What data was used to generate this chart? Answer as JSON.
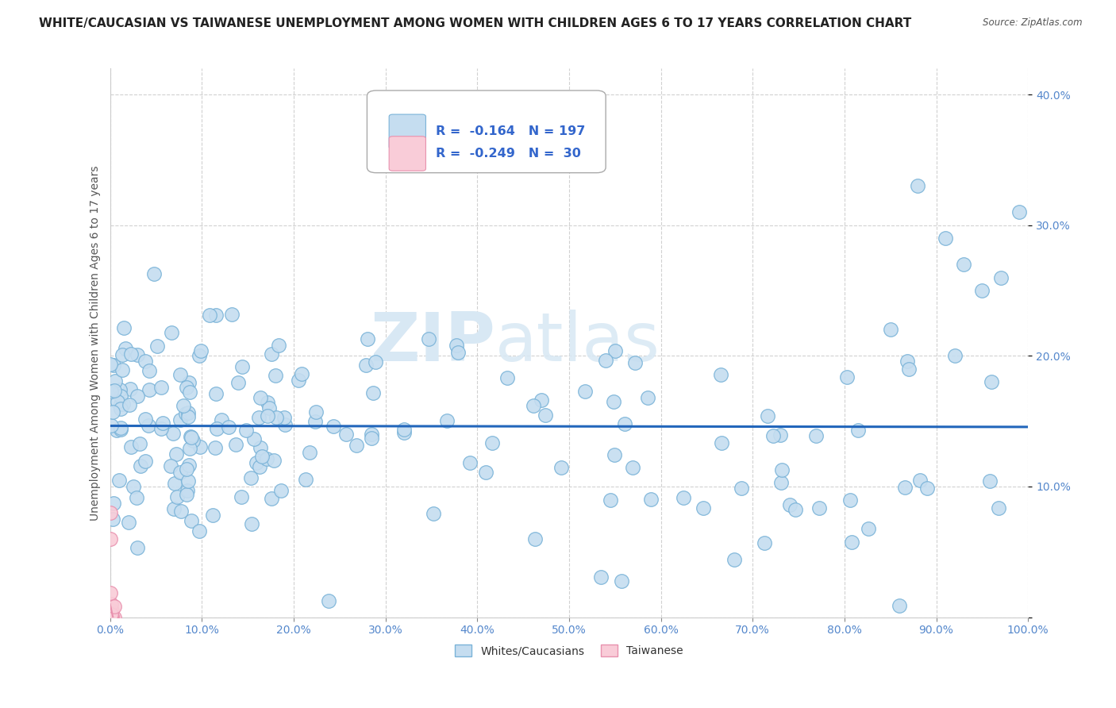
{
  "title": "WHITE/CAUCASIAN VS TAIWANESE UNEMPLOYMENT AMONG WOMEN WITH CHILDREN AGES 6 TO 17 YEARS CORRELATION CHART",
  "source": "Source: ZipAtlas.com",
  "xlabel": "",
  "ylabel": "Unemployment Among Women with Children Ages 6 to 17 years",
  "xlim": [
    0,
    1.0
  ],
  "ylim": [
    0,
    0.42
  ],
  "xticks": [
    0.0,
    0.1,
    0.2,
    0.3,
    0.4,
    0.5,
    0.6,
    0.7,
    0.8,
    0.9,
    1.0
  ],
  "xticklabels": [
    "0.0%",
    "10.0%",
    "20.0%",
    "30.0%",
    "40.0%",
    "50.0%",
    "60.0%",
    "70.0%",
    "80.0%",
    "90.0%",
    "100.0%"
  ],
  "yticks": [
    0.0,
    0.1,
    0.2,
    0.3,
    0.4
  ],
  "yticklabels": [
    "",
    "10.0%",
    "20.0%",
    "30.0%",
    "40.0%"
  ],
  "blue_color": "#c5ddf0",
  "blue_edge": "#7ab3d8",
  "pink_color": "#f9ccd8",
  "pink_edge": "#e891ae",
  "trend_blue": "#2266bb",
  "trend_pink": "#e891ae",
  "R_blue": -0.164,
  "N_blue": 197,
  "R_pink": -0.249,
  "N_pink": 30,
  "legend_label_blue": "Whites/Caucasians",
  "legend_label_pink": "Taiwanese",
  "watermark_zip": "ZIP",
  "watermark_atlas": "atlas",
  "background_color": "#ffffff",
  "grid_color": "#cccccc",
  "title_fontsize": 11,
  "axis_fontsize": 10,
  "tick_fontsize": 10,
  "seed": 123
}
